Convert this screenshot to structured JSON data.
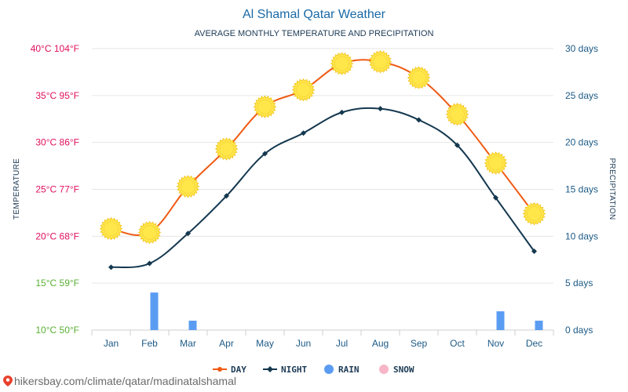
{
  "colors": {
    "day": "#f05a14",
    "night": "#14384f",
    "rain": "#5b9cf3",
    "snow": "#f7b6c7",
    "sun": "#ffe74a",
    "sun_stroke": "#f2c31c",
    "temp_label_hot": "#e0105c",
    "temp_label_mild": "#5ab033",
    "grid": "#e6e6e6",
    "accent_blue": "#1c5a86"
  },
  "footer": {
    "url": "hikersbay.com/climate/qatar/madinatalshamal"
  },
  "chart_data": {
    "type": "line",
    "title": "Al Shamal Qatar Weather",
    "subtitle": "AVERAGE MONTHLY TEMPERATURE AND PRECIPITATION",
    "ylabel": "TEMPERATURE",
    "y2label": "PRECIPITATION",
    "categories": [
      "Jan",
      "Feb",
      "Mar",
      "Apr",
      "May",
      "Jun",
      "Jul",
      "Aug",
      "Sep",
      "Oct",
      "Nov",
      "Dec"
    ],
    "ylim": [
      10,
      40
    ],
    "y2lim": [
      0,
      30
    ],
    "yticks": [
      {
        "value": 40,
        "label": "40°C 104°F"
      },
      {
        "value": 35,
        "label": "35°C 95°F"
      },
      {
        "value": 30,
        "label": "30°C 86°F"
      },
      {
        "value": 25,
        "label": "25°C 77°F"
      },
      {
        "value": 20,
        "label": "20°C 68°F"
      },
      {
        "value": 15,
        "label": "15°C 59°F"
      },
      {
        "value": 10,
        "label": "10°C 50°F"
      }
    ],
    "y2ticks": [
      {
        "value": 30,
        "label": "30 days"
      },
      {
        "value": 25,
        "label": "25 days"
      },
      {
        "value": 20,
        "label": "20 days"
      },
      {
        "value": 15,
        "label": "15 days"
      },
      {
        "value": 10,
        "label": "10 days"
      },
      {
        "value": 5,
        "label": "5 days"
      },
      {
        "value": 0,
        "label": "0 days"
      }
    ],
    "series": [
      {
        "name": "DAY",
        "unit": "°C",
        "values": [
          20.8,
          20.4,
          25.3,
          29.3,
          33.8,
          35.6,
          38.4,
          38.6,
          36.9,
          33.0,
          27.8,
          22.4
        ]
      },
      {
        "name": "NIGHT",
        "unit": "°C",
        "values": [
          16.7,
          17.1,
          20.3,
          24.3,
          28.8,
          31.0,
          33.2,
          33.6,
          32.4,
          29.7,
          24.1,
          18.4
        ]
      },
      {
        "name": "RAIN",
        "unit": "days",
        "values": [
          0,
          4,
          1,
          0,
          0,
          0,
          0,
          0,
          0,
          0,
          2,
          1
        ]
      },
      {
        "name": "SNOW",
        "unit": "days",
        "values": [
          0,
          0,
          0,
          0,
          0,
          0,
          0,
          0,
          0,
          0,
          0,
          0
        ]
      }
    ],
    "legend": [
      "DAY",
      "NIGHT",
      "RAIN",
      "SNOW"
    ],
    "legend_position": "bottom-center",
    "grid": true
  }
}
